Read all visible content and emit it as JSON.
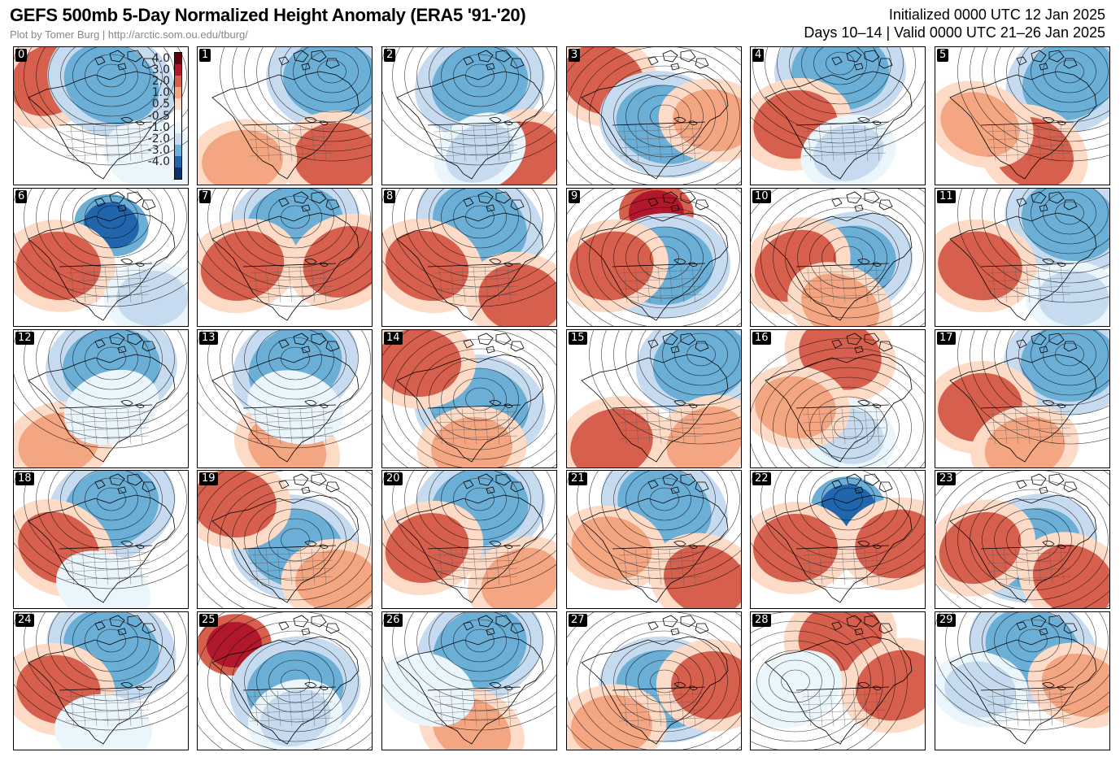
{
  "header": {
    "title": "GEFS 500mb 5-Day Normalized Height Anomaly (ERA5 '91-'20)",
    "credit": "Plot by Tomer Burg | http://arctic.som.ou.edu/tburg/",
    "initialized": "Initialized 0000 UTC 12 Jan 2025",
    "valid": "Days 10–14 | Valid 0000 UTC 21–26 Jan 2025"
  },
  "colorbar": {
    "ticks": [
      "4.0",
      "3.0",
      "2.0",
      "1.0",
      "0.5",
      "-0.5",
      "-1.0",
      "-2.0",
      "-3.0",
      "-4.0"
    ],
    "colors": [
      "#67000d",
      "#b2182b",
      "#d6604d",
      "#f4a582",
      "#fddbc7",
      "#ffffff",
      "#eaf6fb",
      "#c6dbef",
      "#6baed6",
      "#2166ac",
      "#08306b"
    ]
  },
  "colors": {
    "strong_warm": "#b2182b",
    "warm": "#d6604d",
    "mild_warm": "#f4a582",
    "light_warm": "#fddbc7",
    "neutral": "#ffffff",
    "light_cool": "#eaf6fb",
    "mild_cool": "#c6dbef",
    "cool": "#6baed6",
    "strong_cool": "#2166ac"
  },
  "members": [
    {
      "id": "0",
      "patterns": [
        [
          "warm",
          "northwest"
        ],
        [
          "cool",
          "north-central"
        ],
        [
          "light_cool",
          "southeast"
        ]
      ]
    },
    {
      "id": "1",
      "patterns": [
        [
          "cool",
          "northeast"
        ],
        [
          "warm",
          "southeast"
        ],
        [
          "mild_warm",
          "southwest"
        ]
      ]
    },
    {
      "id": "2",
      "patterns": [
        [
          "cool",
          "north-central"
        ],
        [
          "warm",
          "southeast"
        ],
        [
          "mild_cool",
          "south-central"
        ]
      ]
    },
    {
      "id": "3",
      "patterns": [
        [
          "warm",
          "northwest"
        ],
        [
          "cool",
          "center"
        ],
        [
          "mild_warm",
          "east"
        ]
      ]
    },
    {
      "id": "4",
      "patterns": [
        [
          "cool",
          "north"
        ],
        [
          "warm",
          "west"
        ],
        [
          "mild_cool",
          "south-central"
        ]
      ]
    },
    {
      "id": "5",
      "patterns": [
        [
          "cool",
          "northeast"
        ],
        [
          "warm",
          "south-central"
        ],
        [
          "mild_warm",
          "west"
        ]
      ]
    },
    {
      "id": "6",
      "patterns": [
        [
          "strong_cool",
          "north-central"
        ],
        [
          "warm",
          "west"
        ],
        [
          "mild_cool",
          "southeast"
        ]
      ]
    },
    {
      "id": "7",
      "patterns": [
        [
          "cool",
          "north-central"
        ],
        [
          "warm",
          "west"
        ],
        [
          "warm",
          "east"
        ]
      ]
    },
    {
      "id": "8",
      "patterns": [
        [
          "cool",
          "north-central"
        ],
        [
          "warm",
          "west"
        ],
        [
          "warm",
          "southeast"
        ]
      ]
    },
    {
      "id": "9",
      "patterns": [
        [
          "strong_warm",
          "north"
        ],
        [
          "cool",
          "center"
        ],
        [
          "warm",
          "west"
        ]
      ]
    },
    {
      "id": "10",
      "patterns": [
        [
          "cool",
          "center"
        ],
        [
          "warm",
          "west"
        ],
        [
          "mild_warm",
          "south"
        ]
      ]
    },
    {
      "id": "11",
      "patterns": [
        [
          "cool",
          "northeast"
        ],
        [
          "warm",
          "west"
        ],
        [
          "mild_cool",
          "southeast"
        ]
      ]
    },
    {
      "id": "12",
      "patterns": [
        [
          "cool",
          "north-central"
        ],
        [
          "mild_warm",
          "southwest"
        ],
        [
          "light_cool",
          "center"
        ]
      ]
    },
    {
      "id": "13",
      "patterns": [
        [
          "cool",
          "north-central"
        ],
        [
          "mild_warm",
          "south"
        ],
        [
          "light_cool",
          "center"
        ]
      ]
    },
    {
      "id": "14",
      "patterns": [
        [
          "cool",
          "center"
        ],
        [
          "warm",
          "northwest"
        ],
        [
          "mild_warm",
          "south"
        ]
      ]
    },
    {
      "id": "15",
      "patterns": [
        [
          "cool",
          "northeast"
        ],
        [
          "warm",
          "southwest"
        ],
        [
          "mild_warm",
          "southeast"
        ]
      ]
    },
    {
      "id": "16",
      "patterns": [
        [
          "warm",
          "north"
        ],
        [
          "mild_cool",
          "south-central"
        ],
        [
          "mild_warm",
          "west"
        ]
      ]
    },
    {
      "id": "17",
      "patterns": [
        [
          "cool",
          "northeast"
        ],
        [
          "warm",
          "west"
        ],
        [
          "mild_warm",
          "south"
        ]
      ]
    },
    {
      "id": "18",
      "patterns": [
        [
          "cool",
          "north-central"
        ],
        [
          "warm",
          "west"
        ],
        [
          "light_cool",
          "south"
        ]
      ]
    },
    {
      "id": "19",
      "patterns": [
        [
          "cool",
          "center"
        ],
        [
          "warm",
          "northwest"
        ],
        [
          "mild_warm",
          "southeast"
        ]
      ]
    },
    {
      "id": "20",
      "patterns": [
        [
          "cool",
          "north-central"
        ],
        [
          "warm",
          "west"
        ],
        [
          "mild_warm",
          "southeast"
        ]
      ]
    },
    {
      "id": "21",
      "patterns": [
        [
          "cool",
          "north-central"
        ],
        [
          "warm",
          "southeast"
        ],
        [
          "mild_warm",
          "west"
        ]
      ]
    },
    {
      "id": "22",
      "patterns": [
        [
          "strong_cool",
          "north-central"
        ],
        [
          "warm",
          "west"
        ],
        [
          "warm",
          "east"
        ]
      ]
    },
    {
      "id": "23",
      "patterns": [
        [
          "cool",
          "center"
        ],
        [
          "warm",
          "west"
        ],
        [
          "warm",
          "southeast"
        ]
      ]
    },
    {
      "id": "24",
      "patterns": [
        [
          "cool",
          "north-central"
        ],
        [
          "warm",
          "west"
        ],
        [
          "light_cool",
          "south"
        ]
      ]
    },
    {
      "id": "25",
      "patterns": [
        [
          "strong_warm",
          "northwest"
        ],
        [
          "cool",
          "center"
        ],
        [
          "mild_cool",
          "south-central"
        ]
      ]
    },
    {
      "id": "26",
      "patterns": [
        [
          "cool",
          "north-central"
        ],
        [
          "mild_warm",
          "south"
        ],
        [
          "light_cool",
          "west"
        ]
      ]
    },
    {
      "id": "27",
      "patterns": [
        [
          "cool",
          "center"
        ],
        [
          "warm",
          "east"
        ],
        [
          "mild_warm",
          "southwest"
        ]
      ]
    },
    {
      "id": "28",
      "patterns": [
        [
          "warm",
          "north"
        ],
        [
          "warm",
          "east"
        ],
        [
          "light_cool",
          "west"
        ]
      ]
    },
    {
      "id": "29",
      "patterns": [
        [
          "cool",
          "north-central"
        ],
        [
          "mild_warm",
          "east"
        ],
        [
          "mild_cool",
          "west"
        ]
      ]
    }
  ]
}
